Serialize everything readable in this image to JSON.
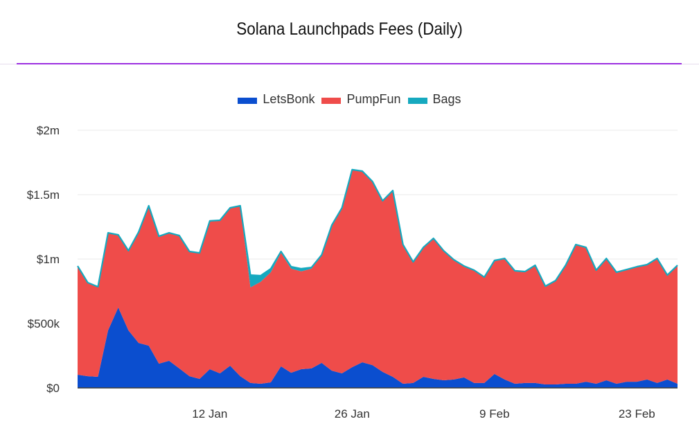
{
  "chart_data": {
    "type": "area",
    "stacked": true,
    "title": "Solana Launchpads Fees (Daily)",
    "xlabel": "",
    "ylabel": "",
    "ylim": [
      0,
      2000000
    ],
    "yticks": [
      0,
      500000,
      1000000,
      1500000,
      2000000
    ],
    "ytick_labels": [
      "$0",
      "$500k",
      "$1m",
      "$1.5m",
      "$2m"
    ],
    "x_start": "30 Dec",
    "x_count": 60,
    "xtick_index": [
      13,
      27,
      41,
      55
    ],
    "xtick_labels": [
      "12 Jan",
      "26 Jan",
      "9 Feb",
      "23 Feb"
    ],
    "grid": true,
    "legend_position": "top",
    "series": [
      {
        "name": "LetsBonk",
        "color": "#0b4ecf",
        "values": [
          102000,
          91000,
          86000,
          446000,
          624000,
          446000,
          349000,
          328000,
          188000,
          210000,
          151000,
          91000,
          70000,
          145000,
          113000,
          172000,
          91000,
          38000,
          32000,
          43000,
          167000,
          118000,
          145000,
          151000,
          194000,
          134000,
          113000,
          161000,
          199000,
          177000,
          124000,
          86000,
          32000,
          38000,
          86000,
          70000,
          59000,
          65000,
          81000,
          38000,
          38000,
          108000,
          65000,
          32000,
          38000,
          38000,
          27000,
          27000,
          32000,
          32000,
          48000,
          32000,
          59000,
          32000,
          48000,
          48000,
          65000,
          38000,
          65000,
          32000
        ]
      },
      {
        "name": "PumpFun",
        "color": "#ef4c4a",
        "values": [
          840000,
          722000,
          695000,
          754000,
          560000,
          615000,
          857000,
          1082000,
          985000,
          990000,
          1028000,
          964000,
          974000,
          1147000,
          1184000,
          1222000,
          1319000,
          742000,
          791000,
          855000,
          882000,
          807000,
          760000,
          774000,
          833000,
          1124000,
          1280000,
          1528000,
          1479000,
          1420000,
          1323000,
          1441000,
          1076000,
          935000,
          1000000,
          1086000,
          1001000,
          925000,
          860000,
          871000,
          817000,
          876000,
          935000,
          872000,
          860000,
          909000,
          758000,
          801000,
          915000,
          1076000,
          1038000,
          877000,
          941000,
          861000,
          866000,
          888000,
          887000,
          962000,
          806000,
          915000
        ]
      },
      {
        "name": "Bags",
        "color": "#16a9bf",
        "values": [
          4000,
          4000,
          4000,
          4000,
          4000,
          4000,
          4000,
          4000,
          4000,
          4000,
          4000,
          4000,
          4000,
          4000,
          4000,
          4000,
          4000,
          96000,
          48000,
          27000,
          10000,
          16000,
          20000,
          10000,
          5000,
          5000,
          5000,
          5000,
          5000,
          5000,
          5000,
          5000,
          5000,
          5000,
          5000,
          5000,
          5000,
          5000,
          5000,
          5000,
          5000,
          5000,
          5000,
          5000,
          5000,
          5000,
          5000,
          5000,
          5000,
          5000,
          5000,
          5000,
          5000,
          5000,
          5000,
          5000,
          5000,
          5000,
          5000,
          5000
        ]
      }
    ]
  }
}
